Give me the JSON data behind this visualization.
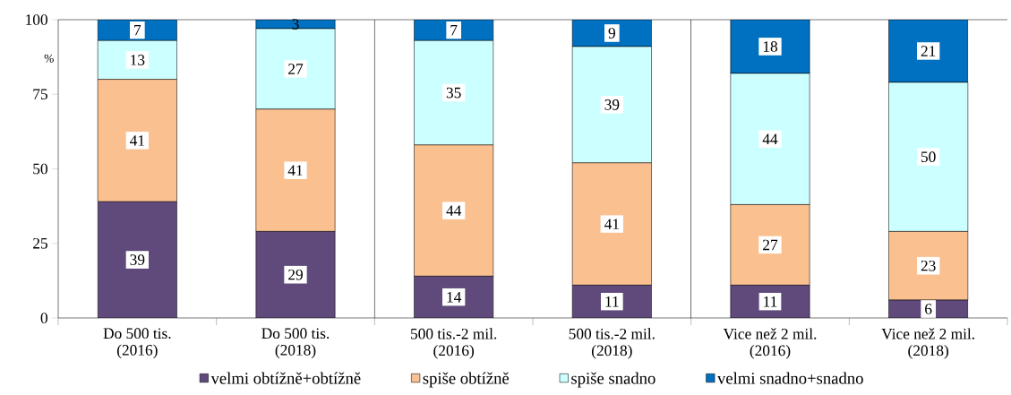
{
  "chart_data": {
    "type": "bar",
    "stacked": true,
    "ylabel": "%",
    "categories": [
      "Do 500 tis.\n(2016)",
      "Do 500 tis.\n(2018)",
      "500 tis.-2 mil.\n(2016)",
      "500 tis.-2 mil.\n(2018)",
      "Vice než 2 mil.\n(2016)",
      "Vice než 2 mil.\n(2018)"
    ],
    "series": [
      {
        "name": "velmi obtížně+obtížně",
        "color": "#604a7b",
        "values": [
          39,
          29,
          14,
          11,
          11,
          6
        ]
      },
      {
        "name": "spiše obtížně",
        "color": "#fac090",
        "values": [
          41,
          41,
          44,
          41,
          27,
          23
        ]
      },
      {
        "name": "spiše snadno",
        "color": "#ccffff",
        "values": [
          13,
          27,
          35,
          39,
          44,
          50
        ]
      },
      {
        "name": "velmi snadno+snadno",
        "color": "#0070c0",
        "values": [
          7,
          3,
          7,
          9,
          18,
          21
        ]
      }
    ],
    "ylim": [
      0,
      100
    ],
    "yticks": [
      0,
      25,
      50,
      75,
      100
    ],
    "grid": false,
    "legend": "bottom",
    "data_labels": true
  }
}
